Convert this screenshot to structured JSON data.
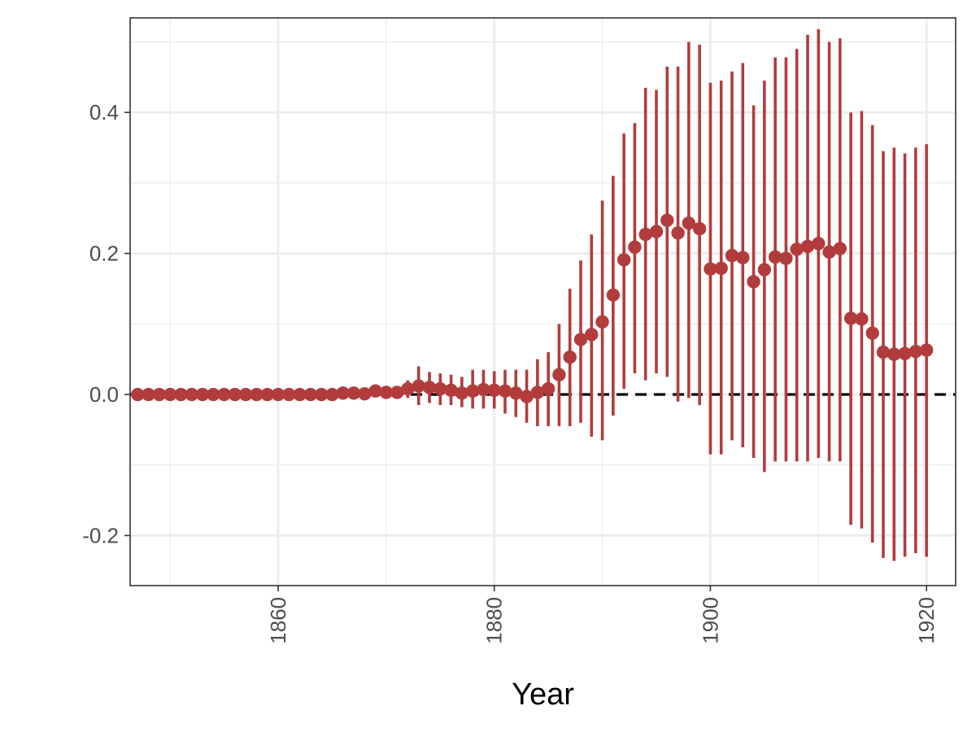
{
  "chart_data": {
    "type": "scatter",
    "title": "",
    "xlabel": "Year",
    "ylabel": "",
    "xlim": [
      1846.3,
      1922.7
    ],
    "ylim": [
      -0.271,
      0.534
    ],
    "x_ticks": [
      1860,
      1880,
      1900,
      1920
    ],
    "y_ticks": [
      -0.2,
      0.0,
      0.2,
      0.4
    ],
    "y_tick_labels": [
      "-0.2",
      "0.0",
      "0.2",
      "0.4"
    ],
    "x_tick_labels": [
      "1860",
      "1880",
      "1900",
      "1920"
    ],
    "grid": true,
    "x_tick_label_rotation": -90,
    "reference_line": {
      "y": 0,
      "style": "dashed",
      "color": "#000000"
    },
    "point_color": "#b23c3c",
    "x": [
      1847,
      1848,
      1849,
      1850,
      1851,
      1852,
      1853,
      1854,
      1855,
      1856,
      1857,
      1858,
      1859,
      1860,
      1861,
      1862,
      1863,
      1864,
      1865,
      1866,
      1867,
      1868,
      1869,
      1870,
      1871,
      1872,
      1873,
      1874,
      1875,
      1876,
      1877,
      1878,
      1879,
      1880,
      1881,
      1882,
      1883,
      1884,
      1885,
      1886,
      1887,
      1888,
      1889,
      1890,
      1891,
      1892,
      1893,
      1894,
      1895,
      1896,
      1897,
      1898,
      1899,
      1900,
      1901,
      1902,
      1903,
      1904,
      1905,
      1906,
      1907,
      1908,
      1909,
      1910,
      1911,
      1912,
      1913,
      1914,
      1915,
      1916,
      1917,
      1918,
      1919,
      1920
    ],
    "estimate": [
      0,
      0,
      0,
      0,
      0,
      0,
      0,
      0,
      0,
      0,
      0,
      0,
      0,
      0,
      0,
      0,
      0,
      0,
      0,
      0.002,
      0.002,
      0.001,
      0.005,
      0.003,
      0.003,
      0.008,
      0.012,
      0.01,
      0.008,
      0.006,
      0.002,
      0.005,
      0.007,
      0.006,
      0.005,
      0.002,
      -0.003,
      0.003,
      0.008,
      0.028,
      0.053,
      0.078,
      0.085,
      0.103,
      0.141,
      0.191,
      0.209,
      0.227,
      0.231,
      0.247,
      0.229,
      0.243,
      0.235,
      0.178,
      0.179,
      0.197,
      0.194,
      0.16,
      0.177,
      0.195,
      0.193,
      0.206,
      0.21,
      0.214,
      0.202,
      0.207,
      0.108,
      0.107,
      0.087,
      0.06,
      0.057,
      0.058,
      0.061,
      0.063
    ],
    "lower": [
      0,
      0,
      0,
      0,
      0,
      0,
      0,
      0,
      0,
      0,
      0,
      0,
      0,
      0,
      0,
      0,
      0,
      0,
      0,
      0,
      0,
      0,
      0,
      0,
      0,
      -0.005,
      -0.015,
      -0.012,
      -0.015,
      -0.015,
      -0.018,
      -0.02,
      -0.02,
      -0.02,
      -0.027,
      -0.032,
      -0.04,
      -0.045,
      -0.045,
      -0.045,
      -0.045,
      -0.04,
      -0.06,
      -0.065,
      -0.03,
      0.008,
      0.03,
      0.02,
      0.03,
      0.025,
      -0.01,
      -0.005,
      -0.015,
      -0.085,
      -0.085,
      -0.065,
      -0.075,
      -0.09,
      -0.11,
      -0.095,
      -0.095,
      -0.095,
      -0.095,
      -0.09,
      -0.095,
      -0.095,
      -0.185,
      -0.19,
      -0.21,
      -0.232,
      -0.236,
      -0.23,
      -0.225,
      -0.23
    ],
    "upper": [
      0,
      0,
      0,
      0,
      0,
      0,
      0,
      0,
      0,
      0,
      0,
      0,
      0,
      0,
      0,
      0,
      0,
      0,
      0,
      0,
      0,
      0,
      0,
      0,
      0,
      0.02,
      0.04,
      0.032,
      0.03,
      0.028,
      0.025,
      0.035,
      0.035,
      0.033,
      0.035,
      0.035,
      0.035,
      0.05,
      0.06,
      0.1,
      0.15,
      0.19,
      0.227,
      0.275,
      0.31,
      0.37,
      0.385,
      0.435,
      0.432,
      0.465,
      0.465,
      0.5,
      0.496,
      0.442,
      0.445,
      0.458,
      0.47,
      0.41,
      0.445,
      0.478,
      0.478,
      0.49,
      0.51,
      0.518,
      0.5,
      0.505,
      0.4,
      0.402,
      0.382,
      0.345,
      0.35,
      0.342,
      0.35,
      0.355
    ]
  }
}
